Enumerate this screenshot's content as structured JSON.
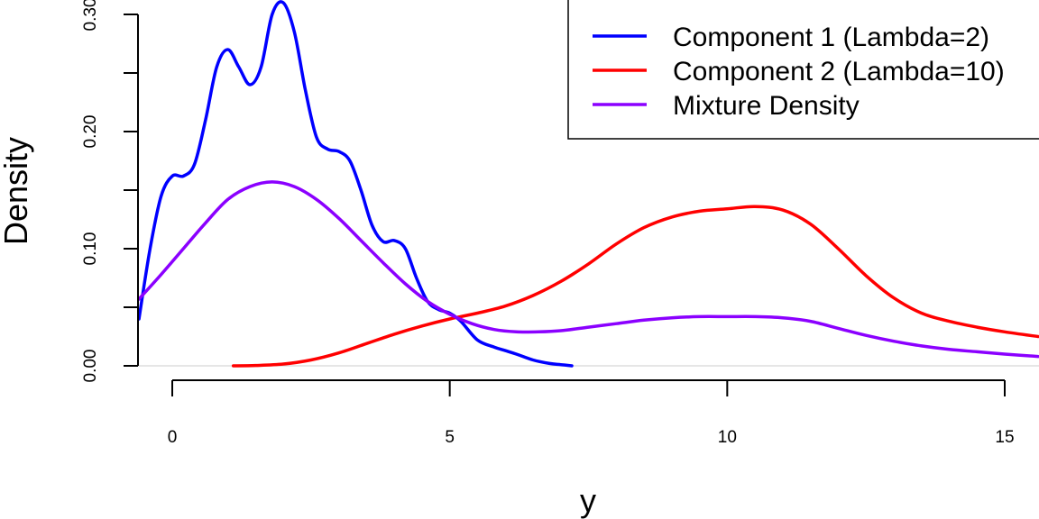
{
  "chart_data": {
    "type": "line",
    "xlabel": "y",
    "ylabel": "Density",
    "xlim": [
      -0.62,
      15.6
    ],
    "ylim": [
      0,
      0.31
    ],
    "x_ticks": [
      0,
      5,
      10,
      15
    ],
    "x_tick_labels": [
      "0",
      "5",
      "10",
      "15"
    ],
    "y_ticks": [
      0.0,
      0.1,
      0.2,
      0.3
    ],
    "y_tick_labels": [
      "0.00",
      "0.10",
      "0.20",
      "0.30"
    ],
    "y_minor_ticks": [
      0.05,
      0.15,
      0.25
    ],
    "legend_position": "top-right",
    "grid": false,
    "series": [
      {
        "name": "Component 1 (Lambda=2)",
        "color": "#0000ff",
        "x": [
          -0.6,
          -0.4,
          -0.2,
          0.0,
          0.2,
          0.4,
          0.6,
          0.8,
          1.0,
          1.2,
          1.4,
          1.6,
          1.8,
          2.0,
          2.2,
          2.4,
          2.6,
          2.8,
          3.0,
          3.2,
          3.4,
          3.6,
          3.8,
          4.0,
          4.2,
          4.4,
          4.6,
          4.8,
          5.0,
          5.2,
          5.5,
          5.8,
          6.0,
          6.2,
          6.5,
          6.8,
          7.0,
          7.2
        ],
        "y": [
          0.04,
          0.1,
          0.145,
          0.162,
          0.162,
          0.172,
          0.21,
          0.255,
          0.27,
          0.255,
          0.24,
          0.255,
          0.3,
          0.31,
          0.285,
          0.235,
          0.195,
          0.185,
          0.183,
          0.175,
          0.15,
          0.12,
          0.106,
          0.107,
          0.1,
          0.075,
          0.055,
          0.048,
          0.045,
          0.038,
          0.022,
          0.016,
          0.013,
          0.01,
          0.005,
          0.002,
          0.001,
          0.0
        ]
      },
      {
        "name": "Component 2 (Lambda=10)",
        "color": "#ff0000",
        "x": [
          1.1,
          1.5,
          2.0,
          2.5,
          3.0,
          3.5,
          4.0,
          4.5,
          5.0,
          5.5,
          6.0,
          6.5,
          7.0,
          7.5,
          8.0,
          8.5,
          9.0,
          9.5,
          10.0,
          10.5,
          11.0,
          11.5,
          12.0,
          12.5,
          13.0,
          13.5,
          14.0,
          14.5,
          15.0,
          15.6
        ],
        "y": [
          0.0,
          0.0003,
          0.0015,
          0.005,
          0.011,
          0.019,
          0.027,
          0.034,
          0.04,
          0.045,
          0.051,
          0.06,
          0.072,
          0.087,
          0.104,
          0.118,
          0.127,
          0.132,
          0.134,
          0.136,
          0.133,
          0.121,
          0.1,
          0.077,
          0.058,
          0.045,
          0.038,
          0.033,
          0.029,
          0.025
        ]
      },
      {
        "name": "Mixture Density",
        "color": "#8b00ff",
        "x": [
          -0.6,
          -0.2,
          0.2,
          0.6,
          1.0,
          1.4,
          1.8,
          2.2,
          2.6,
          3.0,
          3.4,
          3.8,
          4.2,
          4.6,
          5.0,
          5.4,
          5.8,
          6.2,
          6.6,
          7.0,
          7.5,
          8.0,
          8.5,
          9.0,
          9.5,
          10.0,
          10.5,
          11.0,
          11.5,
          12.0,
          12.5,
          13.0,
          13.5,
          14.0,
          14.5,
          15.0,
          15.6
        ],
        "y": [
          0.057,
          0.078,
          0.1,
          0.122,
          0.142,
          0.153,
          0.157,
          0.153,
          0.142,
          0.126,
          0.107,
          0.088,
          0.07,
          0.055,
          0.044,
          0.036,
          0.031,
          0.029,
          0.029,
          0.03,
          0.033,
          0.036,
          0.039,
          0.041,
          0.042,
          0.042,
          0.042,
          0.041,
          0.038,
          0.032,
          0.026,
          0.021,
          0.017,
          0.014,
          0.012,
          0.01,
          0.008
        ]
      }
    ]
  }
}
